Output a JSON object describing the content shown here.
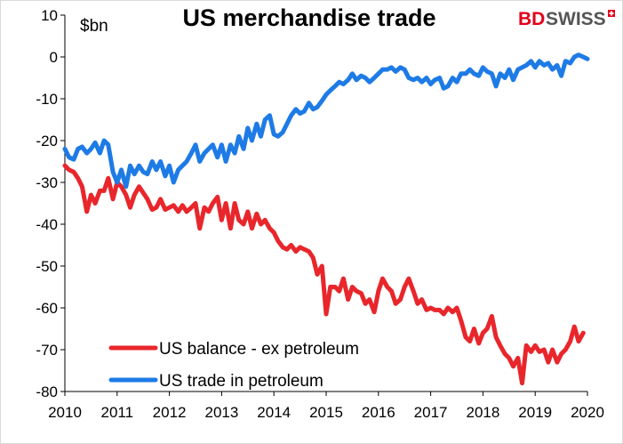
{
  "brand": {
    "part1": "BD",
    "part2": "SWISS",
    "icon": "swiss-cross-icon"
  },
  "chart_data": {
    "type": "line",
    "title": "US merchandise trade",
    "unit": "$bn",
    "xlabel": "",
    "ylabel": "",
    "xlim": [
      2010,
      2020
    ],
    "ylim": [
      -80,
      10
    ],
    "grid": false,
    "legend_position": "bottom-left",
    "x_ticks": [
      "2010",
      "2011",
      "2012",
      "2013",
      "2014",
      "2015",
      "2016",
      "2017",
      "2018",
      "2019",
      "2020"
    ],
    "y_ticks": [
      "10",
      "0",
      "-10",
      "-20",
      "-30",
      "-40",
      "-50",
      "-60",
      "-70",
      "-80"
    ],
    "series": [
      {
        "name": "US balance - ex petroleum",
        "color": "#e8262b",
        "x": [
          2010.0,
          2010.08,
          2010.17,
          2010.25,
          2010.33,
          2010.42,
          2010.5,
          2010.58,
          2010.67,
          2010.75,
          2010.83,
          2010.92,
          2011.0,
          2011.08,
          2011.17,
          2011.25,
          2011.33,
          2011.42,
          2011.5,
          2011.58,
          2011.67,
          2011.75,
          2011.83,
          2011.92,
          2012.0,
          2012.08,
          2012.17,
          2012.25,
          2012.33,
          2012.42,
          2012.5,
          2012.58,
          2012.67,
          2012.75,
          2012.83,
          2012.92,
          2013.0,
          2013.08,
          2013.17,
          2013.25,
          2013.33,
          2013.42,
          2013.5,
          2013.58,
          2013.67,
          2013.75,
          2013.83,
          2013.92,
          2014.0,
          2014.08,
          2014.17,
          2014.25,
          2014.33,
          2014.42,
          2014.5,
          2014.58,
          2014.67,
          2014.75,
          2014.83,
          2014.92,
          2015.0,
          2015.08,
          2015.17,
          2015.25,
          2015.33,
          2015.42,
          2015.5,
          2015.58,
          2015.67,
          2015.75,
          2015.83,
          2015.92,
          2016.0,
          2016.08,
          2016.17,
          2016.25,
          2016.33,
          2016.42,
          2016.5,
          2016.58,
          2016.67,
          2016.75,
          2016.83,
          2016.92,
          2017.0,
          2017.08,
          2017.17,
          2017.25,
          2017.33,
          2017.42,
          2017.5,
          2017.58,
          2017.67,
          2017.75,
          2017.83,
          2017.92,
          2018.0,
          2018.08,
          2018.17,
          2018.25,
          2018.33,
          2018.42,
          2018.5,
          2018.58,
          2018.67,
          2018.75,
          2018.83,
          2018.92,
          2019.0,
          2019.08,
          2019.17,
          2019.25,
          2019.33,
          2019.42,
          2019.5,
          2019.58,
          2019.67,
          2019.75,
          2019.83,
          2019.92
        ],
        "values": [
          -26,
          -27,
          -27.5,
          -29,
          -31,
          -37,
          -33,
          -35,
          -32,
          -32,
          -29,
          -34,
          -30,
          -31,
          -33,
          -36,
          -33,
          -31,
          -32.5,
          -34,
          -36.5,
          -36,
          -34,
          -36.5,
          -36,
          -35.5,
          -37,
          -35.5,
          -37,
          -36,
          -35,
          -41,
          -36,
          -37,
          -35,
          -33.5,
          -39,
          -35,
          -41,
          -35,
          -39,
          -40,
          -37,
          -41,
          -37.5,
          -40,
          -39,
          -41,
          -42,
          -44,
          -45.5,
          -46,
          -45,
          -46.5,
          -45.5,
          -46,
          -46.5,
          -48,
          -52,
          -50,
          -61.5,
          -55,
          -55,
          -56,
          -53,
          -58,
          -55,
          -56,
          -56.5,
          -59,
          -58,
          -61,
          -56,
          -53,
          -55,
          -56,
          -59,
          -58,
          -55,
          -53,
          -56,
          -59,
          -58,
          -60.5,
          -60,
          -60.5,
          -60.5,
          -61.5,
          -60,
          -61,
          -60,
          -63,
          -67,
          -68,
          -65,
          -68.5,
          -66,
          -65,
          -62,
          -67,
          -69,
          -71,
          -72,
          -74,
          -72,
          -78,
          -69,
          -70.5,
          -69,
          -70.5,
          -70,
          -73,
          -70,
          -73,
          -71,
          -70,
          -68,
          -64.5,
          -68,
          -66
        ]
      },
      {
        "name": "US trade in petroleum",
        "color": "#1e7be6",
        "x": [
          2010.0,
          2010.08,
          2010.17,
          2010.25,
          2010.33,
          2010.42,
          2010.5,
          2010.58,
          2010.67,
          2010.75,
          2010.83,
          2010.92,
          2011.0,
          2011.08,
          2011.17,
          2011.25,
          2011.33,
          2011.42,
          2011.5,
          2011.58,
          2011.67,
          2011.75,
          2011.83,
          2011.92,
          2012.0,
          2012.08,
          2012.17,
          2012.25,
          2012.33,
          2012.42,
          2012.5,
          2012.58,
          2012.67,
          2012.75,
          2012.83,
          2012.92,
          2013.0,
          2013.08,
          2013.17,
          2013.25,
          2013.33,
          2013.42,
          2013.5,
          2013.58,
          2013.67,
          2013.75,
          2013.83,
          2013.92,
          2014.0,
          2014.08,
          2014.17,
          2014.25,
          2014.33,
          2014.42,
          2014.5,
          2014.58,
          2014.67,
          2014.75,
          2014.83,
          2014.92,
          2015.0,
          2015.08,
          2015.17,
          2015.25,
          2015.33,
          2015.42,
          2015.5,
          2015.58,
          2015.67,
          2015.75,
          2015.83,
          2015.92,
          2016.0,
          2016.08,
          2016.17,
          2016.25,
          2016.33,
          2016.42,
          2016.5,
          2016.58,
          2016.67,
          2016.75,
          2016.83,
          2016.92,
          2017.0,
          2017.08,
          2017.17,
          2017.25,
          2017.33,
          2017.42,
          2017.5,
          2017.58,
          2017.67,
          2017.75,
          2017.83,
          2017.92,
          2018.0,
          2018.08,
          2018.17,
          2018.25,
          2018.33,
          2018.42,
          2018.5,
          2018.58,
          2018.67,
          2018.75,
          2018.83,
          2018.92,
          2019.0,
          2019.08,
          2019.17,
          2019.25,
          2019.33,
          2019.42,
          2019.5,
          2019.58,
          2019.67,
          2019.75,
          2019.83,
          2019.92,
          2020.0
        ],
        "values": [
          -22,
          -24,
          -24.5,
          -22,
          -21.5,
          -23,
          -22,
          -20.5,
          -23,
          -20,
          -21,
          -27.5,
          -30,
          -27,
          -31,
          -26,
          -28,
          -26,
          -27.5,
          -28,
          -25,
          -27,
          -25,
          -28.5,
          -26,
          -30,
          -27,
          -26,
          -25,
          -23,
          -21,
          -25,
          -23,
          -22,
          -21,
          -24,
          -21,
          -25,
          -21,
          -23,
          -19,
          -22,
          -17,
          -20,
          -16,
          -19,
          -15,
          -14,
          -18.5,
          -19,
          -18,
          -16,
          -14,
          -12.5,
          -13.5,
          -13,
          -11,
          -12.5,
          -12,
          -10.5,
          -9,
          -8,
          -7,
          -6,
          -6.5,
          -5.5,
          -4,
          -5.5,
          -4.5,
          -5,
          -6,
          -5,
          -4,
          -3,
          -3,
          -2.5,
          -3.5,
          -2.5,
          -3,
          -5,
          -5.5,
          -5,
          -6,
          -5,
          -6.5,
          -5.5,
          -5,
          -7.5,
          -7,
          -5,
          -6,
          -4,
          -4,
          -3,
          -4,
          -4.5,
          -2.5,
          -3.5,
          -4,
          -7,
          -4,
          -5,
          -3,
          -5.5,
          -3,
          -2.5,
          -2,
          -1,
          -2.5,
          -1,
          -2,
          -1.5,
          -3,
          -2,
          -4.5,
          -1,
          -1.5,
          0,
          0.5,
          0,
          -0.5
        ]
      }
    ]
  }
}
